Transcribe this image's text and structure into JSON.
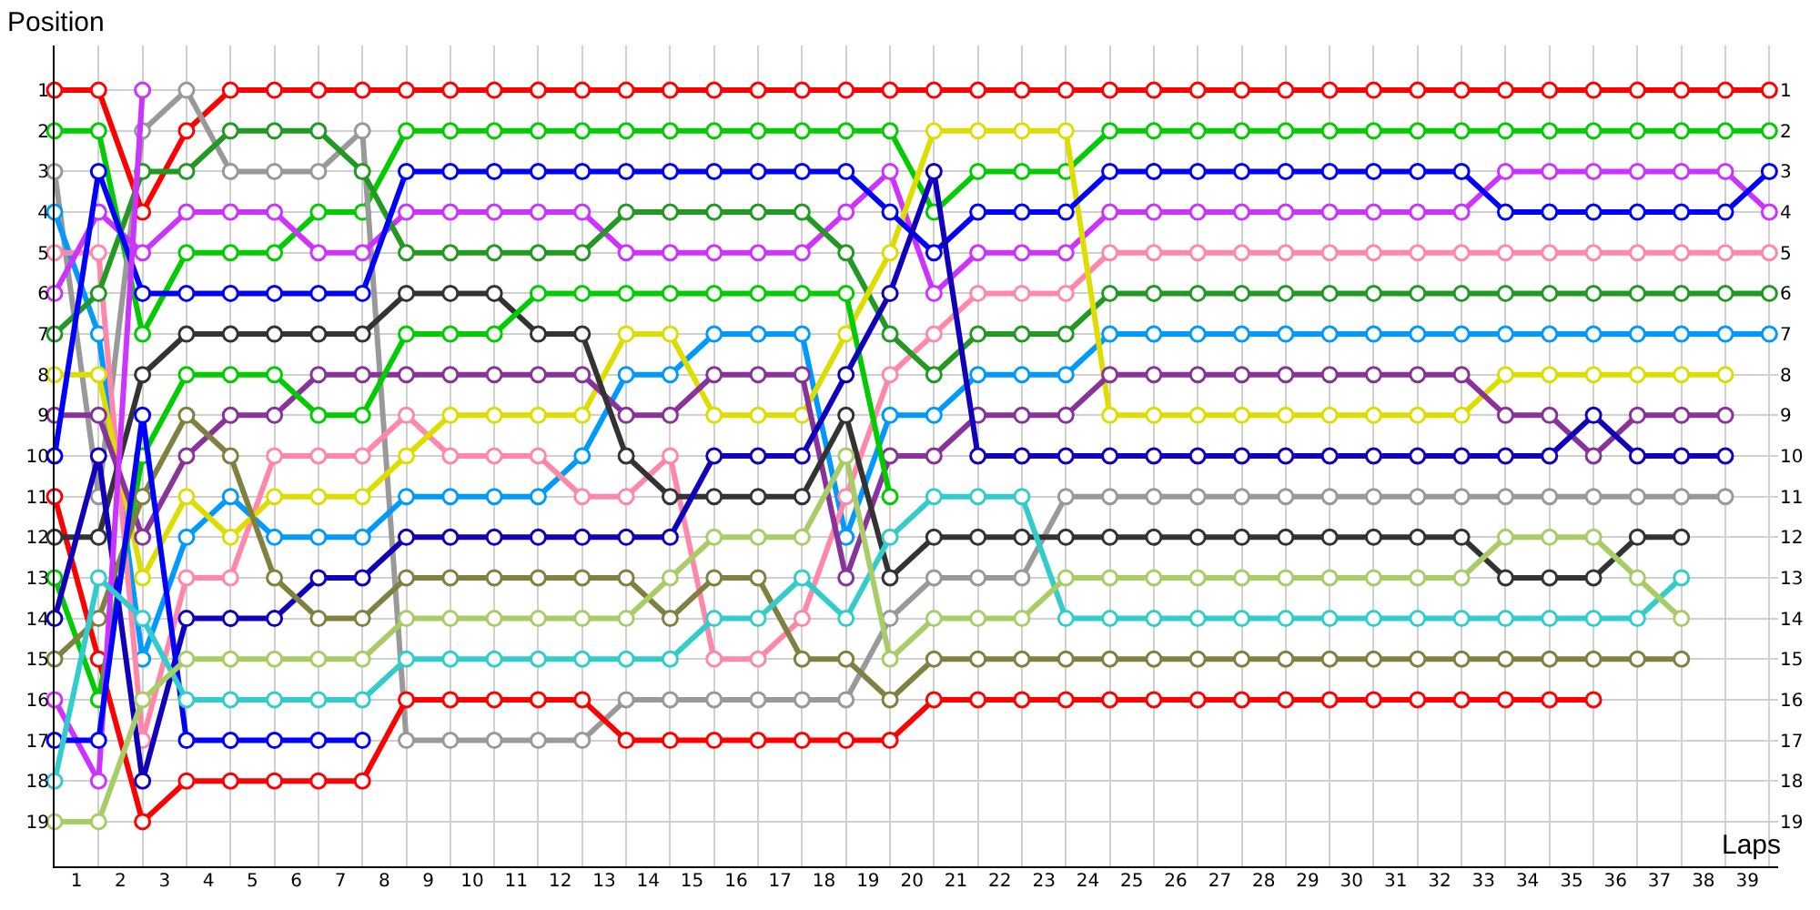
{
  "chart_data": {
    "type": "line",
    "xlabel": "Laps",
    "ylabel": "Position",
    "marker": "circle",
    "line_style": "solid",
    "grid": true,
    "x": [
      0,
      1,
      2,
      3,
      4,
      5,
      6,
      7,
      8,
      9,
      10,
      11,
      12,
      13,
      14,
      15,
      16,
      17,
      18,
      19,
      20,
      21,
      22,
      23,
      24,
      25,
      26,
      27,
      28,
      29,
      30,
      31,
      32,
      33,
      34,
      35,
      36,
      37,
      38,
      39
    ],
    "xlim": [
      0,
      39.2
    ],
    "xticks": [
      {
        "value": 0,
        "label": null
      },
      {
        "value": 1,
        "label": null
      },
      {
        "value": 2,
        "label": null
      },
      {
        "value": 3,
        "label": null
      },
      {
        "value": 4,
        "label": null
      },
      {
        "value": 5,
        "label": null
      },
      {
        "value": 6,
        "label": null
      },
      {
        "value": 7,
        "label": null
      },
      {
        "value": 8,
        "label": null
      },
      {
        "value": 9,
        "label": null
      },
      {
        "value": 10,
        "label": null
      },
      {
        "value": 11,
        "label": null
      },
      {
        "value": 12,
        "label": null
      },
      {
        "value": 13,
        "label": null
      },
      {
        "value": 14,
        "label": null
      },
      {
        "value": 15,
        "label": null
      },
      {
        "value": 16,
        "label": null
      },
      {
        "value": 17,
        "label": null
      },
      {
        "value": 18,
        "label": null
      },
      {
        "value": 19,
        "label": null
      },
      {
        "value": 20,
        "label": null
      },
      {
        "value": 21,
        "label": null
      },
      {
        "value": 22,
        "label": null
      },
      {
        "value": 23,
        "label": null
      },
      {
        "value": 24,
        "label": null
      },
      {
        "value": 25,
        "label": null
      },
      {
        "value": 26,
        "label": null
      },
      {
        "value": 27,
        "label": null
      },
      {
        "value": 28,
        "label": null
      },
      {
        "value": 29,
        "label": null
      },
      {
        "value": 30,
        "label": null
      },
      {
        "value": 31,
        "label": null
      },
      {
        "value": 32,
        "label": null
      },
      {
        "value": 33,
        "label": null
      },
      {
        "value": 34,
        "label": null
      },
      {
        "value": 35,
        "label": null
      },
      {
        "value": 36,
        "label": null
      },
      {
        "value": 37,
        "label": null
      },
      {
        "value": 38,
        "label": null
      },
      {
        "value": 39,
        "label": null
      },
      {
        "value": 0.5,
        "label": "1"
      },
      {
        "value": 1.5,
        "label": "2"
      },
      {
        "value": 2.5,
        "label": "3"
      },
      {
        "value": 3.5,
        "label": "4"
      },
      {
        "value": 4.5,
        "label": "5"
      },
      {
        "value": 5.5,
        "label": "6"
      },
      {
        "value": 6.5,
        "label": "7"
      },
      {
        "value": 7.5,
        "label": "8"
      },
      {
        "value": 8.5,
        "label": "9"
      },
      {
        "value": 9.5,
        "label": "10"
      },
      {
        "value": 10.5,
        "label": "11"
      },
      {
        "value": 11.5,
        "label": "12"
      },
      {
        "value": 12.5,
        "label": "13"
      },
      {
        "value": 13.5,
        "label": "14"
      },
      {
        "value": 14.5,
        "label": "15"
      },
      {
        "value": 15.5,
        "label": "16"
      },
      {
        "value": 16.5,
        "label": "17"
      },
      {
        "value": 17.5,
        "label": "18"
      },
      {
        "value": 18.5,
        "label": "19"
      },
      {
        "value": 19.5,
        "label": "20"
      },
      {
        "value": 20.5,
        "label": "21"
      },
      {
        "value": 21.5,
        "label": "22"
      },
      {
        "value": 22.5,
        "label": "23"
      },
      {
        "value": 23.5,
        "label": "24"
      },
      {
        "value": 24.5,
        "label": "25"
      },
      {
        "value": 25.5,
        "label": "26"
      },
      {
        "value": 26.5,
        "label": "27"
      },
      {
        "value": 27.5,
        "label": "28"
      },
      {
        "value": 28.5,
        "label": "29"
      },
      {
        "value": 29.5,
        "label": "30"
      },
      {
        "value": 30.5,
        "label": "31"
      },
      {
        "value": 31.5,
        "label": "32"
      },
      {
        "value": 32.5,
        "label": "33"
      },
      {
        "value": 33.5,
        "label": "34"
      },
      {
        "value": 34.5,
        "label": "35"
      },
      {
        "value": 35.5,
        "label": "36"
      },
      {
        "value": 36.5,
        "label": "37"
      },
      {
        "value": 37.5,
        "label": "38"
      },
      {
        "value": 38.5,
        "label": "39"
      }
    ],
    "ylim": [
      20.1,
      -0.1
    ],
    "yticks": [
      1,
      2,
      3,
      4,
      5,
      6,
      7,
      8,
      9,
      10,
      11,
      12,
      13,
      14,
      15,
      16,
      17,
      18,
      19
    ],
    "y2lim": [
      20.1,
      -0.1
    ],
    "y2ticks": [
      1,
      2,
      3,
      4,
      5,
      6,
      7,
      8,
      9,
      10,
      11,
      12,
      13,
      14,
      15,
      16,
      17,
      18,
      19
    ],
    "series": [
      {
        "color": "#ff0000",
        "values": [
          1,
          1,
          4,
          2,
          1,
          1,
          1,
          1,
          1,
          1,
          1,
          1,
          1,
          1,
          1,
          1,
          1,
          1,
          1,
          1,
          1,
          1,
          1,
          1,
          1,
          1,
          1,
          1,
          1,
          1,
          1,
          1,
          1,
          1,
          1,
          1,
          1,
          1,
          1,
          1
        ]
      },
      {
        "color": "#00cc00",
        "values": [
          2,
          2,
          7,
          5,
          5,
          5,
          4,
          4,
          2,
          2,
          2,
          2,
          2,
          2,
          2,
          2,
          2,
          2,
          2,
          2,
          4,
          3,
          3,
          3,
          2,
          2,
          2,
          2,
          2,
          2,
          2,
          2,
          2,
          2,
          2,
          2,
          2,
          2,
          2,
          2
        ]
      },
      {
        "color": "#999999",
        "values": [
          3,
          11,
          2,
          1,
          3,
          3,
          3,
          2,
          17,
          17,
          17,
          17,
          17,
          16,
          16,
          16,
          16,
          16,
          16,
          14,
          13,
          13,
          13,
          11,
          11,
          11,
          11,
          11,
          11,
          11,
          11,
          11,
          11,
          11,
          11,
          11,
          11,
          11,
          11,
          null
        ]
      },
      {
        "color": "#0099ff",
        "values": [
          4,
          7,
          15,
          12,
          11,
          12,
          12,
          12,
          11,
          11,
          11,
          11,
          10,
          8,
          8,
          7,
          7,
          7,
          12,
          9,
          9,
          8,
          8,
          8,
          7,
          7,
          7,
          7,
          7,
          7,
          7,
          7,
          7,
          7,
          7,
          7,
          7,
          7,
          7,
          7
        ]
      },
      {
        "color": "#ff88aa",
        "values": [
          5,
          5,
          17,
          13,
          13,
          10,
          10,
          10,
          9,
          10,
          10,
          10,
          11,
          11,
          10,
          15,
          15,
          14,
          11,
          8,
          7,
          6,
          6,
          6,
          5,
          5,
          5,
          5,
          5,
          5,
          5,
          5,
          5,
          5,
          5,
          5,
          5,
          5,
          5,
          5
        ]
      },
      {
        "color": "#cc33ff",
        "values": [
          6,
          4,
          5,
          4,
          4,
          4,
          5,
          5,
          4,
          4,
          4,
          4,
          4,
          5,
          5,
          5,
          5,
          5,
          4,
          3,
          6,
          5,
          5,
          5,
          4,
          4,
          4,
          4,
          4,
          4,
          4,
          4,
          4,
          3,
          3,
          3,
          3,
          3,
          3,
          4
        ]
      },
      {
        "color": "#229922",
        "values": [
          7,
          6,
          3,
          3,
          2,
          2,
          2,
          3,
          5,
          5,
          5,
          5,
          5,
          4,
          4,
          4,
          4,
          4,
          5,
          7,
          8,
          7,
          7,
          7,
          6,
          6,
          6,
          6,
          6,
          6,
          6,
          6,
          6,
          6,
          6,
          6,
          6,
          6,
          6,
          6
        ]
      },
      {
        "color": "#dddd00",
        "values": [
          8,
          8,
          13,
          11,
          12,
          11,
          11,
          11,
          10,
          9,
          9,
          9,
          9,
          7,
          7,
          9,
          9,
          9,
          7,
          5,
          2,
          2,
          2,
          2,
          9,
          9,
          9,
          9,
          9,
          9,
          9,
          9,
          9,
          8,
          8,
          8,
          8,
          8,
          8,
          null
        ]
      },
      {
        "color": "#883399",
        "values": [
          9,
          9,
          12,
          10,
          9,
          9,
          8,
          8,
          8,
          8,
          8,
          8,
          8,
          9,
          9,
          8,
          8,
          8,
          13,
          10,
          10,
          9,
          9,
          9,
          8,
          8,
          8,
          8,
          8,
          8,
          8,
          8,
          8,
          9,
          9,
          10,
          9,
          9,
          9,
          null
        ]
      },
      {
        "color": "#0000ff",
        "values": [
          10,
          3,
          6,
          6,
          6,
          6,
          6,
          6,
          3,
          3,
          3,
          3,
          3,
          3,
          3,
          3,
          3,
          3,
          3,
          4,
          5,
          4,
          4,
          4,
          3,
          3,
          3,
          3,
          3,
          3,
          3,
          3,
          3,
          4,
          4,
          4,
          4,
          4,
          4,
          3
        ]
      },
      {
        "color": "#ff0000",
        "values": [
          11,
          15,
          19,
          18,
          18,
          18,
          18,
          18,
          16,
          16,
          16,
          16,
          16,
          17,
          17,
          17,
          17,
          17,
          17,
          17,
          16,
          16,
          16,
          16,
          16,
          16,
          16,
          16,
          16,
          16,
          16,
          16,
          16,
          16,
          16,
          16,
          null,
          null,
          null,
          null
        ]
      },
      {
        "color": "#333333",
        "values": [
          12,
          12,
          8,
          7,
          7,
          7,
          7,
          7,
          6,
          6,
          6,
          7,
          7,
          10,
          11,
          11,
          11,
          11,
          9,
          13,
          12,
          12,
          12,
          12,
          12,
          12,
          12,
          12,
          12,
          12,
          12,
          12,
          12,
          13,
          13,
          13,
          12,
          12,
          null,
          null
        ]
      },
      {
        "color": "#00cc00",
        "values": [
          13,
          16,
          10,
          8,
          8,
          8,
          9,
          9,
          7,
          7,
          7,
          6,
          6,
          6,
          6,
          6,
          6,
          6,
          6,
          11,
          null,
          null,
          null,
          null,
          null,
          null,
          null,
          null,
          null,
          null,
          null,
          null,
          null,
          null,
          null,
          null,
          null,
          null,
          null,
          null
        ]
      },
      {
        "color": "#1100bb",
        "values": [
          14,
          10,
          18,
          14,
          14,
          14,
          13,
          13,
          12,
          12,
          12,
          12,
          12,
          12,
          12,
          10,
          10,
          10,
          8,
          6,
          3,
          10,
          10,
          10,
          10,
          10,
          10,
          10,
          10,
          10,
          10,
          10,
          10,
          10,
          10,
          9,
          10,
          10,
          10,
          null
        ]
      },
      {
        "color": "#808040",
        "values": [
          15,
          14,
          11,
          9,
          10,
          13,
          14,
          14,
          13,
          13,
          13,
          13,
          13,
          13,
          14,
          13,
          13,
          15,
          15,
          16,
          15,
          15,
          15,
          15,
          15,
          15,
          15,
          15,
          15,
          15,
          15,
          15,
          15,
          15,
          15,
          15,
          15,
          15,
          null,
          null
        ]
      },
      {
        "color": "#cc33ff",
        "values": [
          16,
          18,
          1,
          null,
          null,
          null,
          null,
          null,
          null,
          null,
          null,
          null,
          null,
          null,
          null,
          null,
          null,
          null,
          null,
          null,
          null,
          null,
          null,
          null,
          null,
          null,
          null,
          null,
          null,
          null,
          null,
          null,
          null,
          null,
          null,
          null,
          null,
          null,
          null,
          null
        ]
      },
      {
        "color": "#0000ff",
        "values": [
          17,
          17,
          9,
          17,
          17,
          17,
          17,
          17,
          null,
          null,
          null,
          null,
          null,
          null,
          null,
          null,
          null,
          null,
          null,
          null,
          null,
          null,
          null,
          null,
          null,
          null,
          null,
          null,
          null,
          null,
          null,
          null,
          null,
          null,
          null,
          null,
          null,
          null,
          null,
          null
        ]
      },
      {
        "color": "#33cccc",
        "values": [
          18,
          13,
          14,
          16,
          16,
          16,
          16,
          16,
          15,
          15,
          15,
          15,
          15,
          15,
          15,
          14,
          14,
          13,
          14,
          12,
          11,
          11,
          11,
          14,
          14,
          14,
          14,
          14,
          14,
          14,
          14,
          14,
          14,
          14,
          14,
          14,
          14,
          13,
          null,
          null
        ]
      },
      {
        "color": "#a8cc66",
        "values": [
          19,
          19,
          16,
          15,
          15,
          15,
          15,
          15,
          14,
          14,
          14,
          14,
          14,
          14,
          13,
          12,
          12,
          12,
          10,
          15,
          14,
          14,
          14,
          13,
          13,
          13,
          13,
          13,
          13,
          13,
          13,
          13,
          13,
          12,
          12,
          12,
          13,
          14,
          null,
          null
        ]
      }
    ]
  }
}
